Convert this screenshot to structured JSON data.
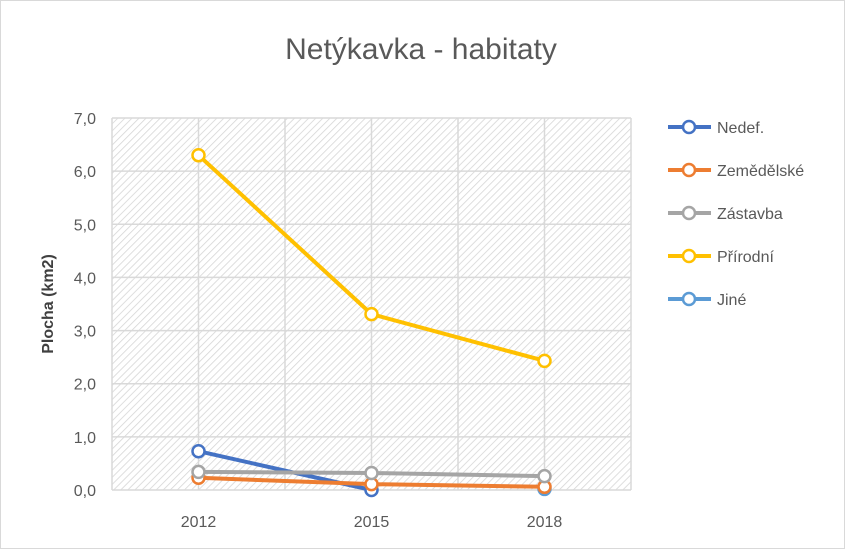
{
  "chart_data": {
    "type": "line",
    "title": "Netýkavka - habitaty",
    "xlabel": "",
    "ylabel": "Plocha (km2)",
    "categories": [
      "2012",
      "2015",
      "2018"
    ],
    "ylim": [
      0,
      7
    ],
    "yticks": [
      "0,0",
      "1,0",
      "2,0",
      "3,0",
      "4,0",
      "5,0",
      "6,0",
      "7,0"
    ],
    "grid": true,
    "legend": "right",
    "series": [
      {
        "name": "Nedef.",
        "color": "#4472c4",
        "values": [
          0.73,
          0.0,
          null
        ]
      },
      {
        "name": "Zemědělské",
        "color": "#ed7d31",
        "values": [
          0.23,
          0.11,
          0.06
        ]
      },
      {
        "name": "Zástavba",
        "color": "#a5a5a5",
        "values": [
          0.34,
          0.32,
          0.26
        ]
      },
      {
        "name": "Přírodní",
        "color": "#ffc000",
        "values": [
          6.3,
          3.31,
          2.43
        ]
      },
      {
        "name": "Jiné",
        "color": "#5b9bd5",
        "values": [
          null,
          null,
          0.02
        ]
      }
    ]
  }
}
